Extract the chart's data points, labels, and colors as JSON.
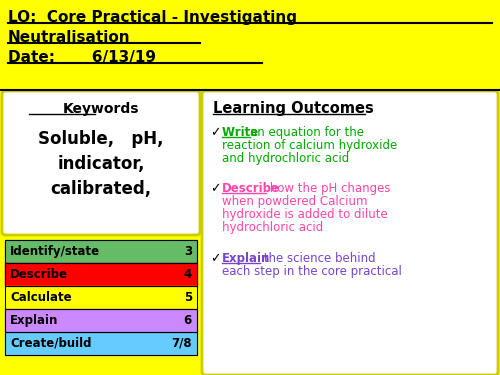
{
  "bg_color": "#FFFF00",
  "title_line1": "LO:  Core Practical - Investigating",
  "title_line2": "Neutralisation",
  "date_line": "Date:       6/13/19",
  "keywords_title": "Keywords",
  "keywords_body": "Soluble,   pH,\nindicator,\ncalibrated,",
  "lo_title": "Learning Outcomes",
  "lo1_check": "✓",
  "lo1_keyword": "Write ",
  "lo1_rest": "an equation for the\nreaction of calcium hydroxide\nand hydrochloric acid",
  "lo2_check": "✓",
  "lo2_keyword": "Describe",
  "lo2_rest": " how the pH changes\nwhen powdered Calcium\nhydroxide is added to dilute\nhydrochloric acid",
  "lo3_check": "✓",
  "lo3_keyword": "Explain",
  "lo3_rest": " the science behind\neach step in the core practical",
  "bloom_rows": [
    {
      "label": "Identify/state",
      "value": "3",
      "color": "#66BB66"
    },
    {
      "label": "Describe",
      "value": "4",
      "color": "#FF0000"
    },
    {
      "label": "Calculate",
      "value": "5",
      "color": "#FFFF00"
    },
    {
      "label": "Explain",
      "value": "6",
      "color": "#CC88FF"
    },
    {
      "label": "Create/build",
      "value": "7/8",
      "color": "#66CCFF"
    }
  ],
  "lo1_color": "#00AA00",
  "lo2_color": "#FF44AA",
  "lo3_color": "#7744CC"
}
